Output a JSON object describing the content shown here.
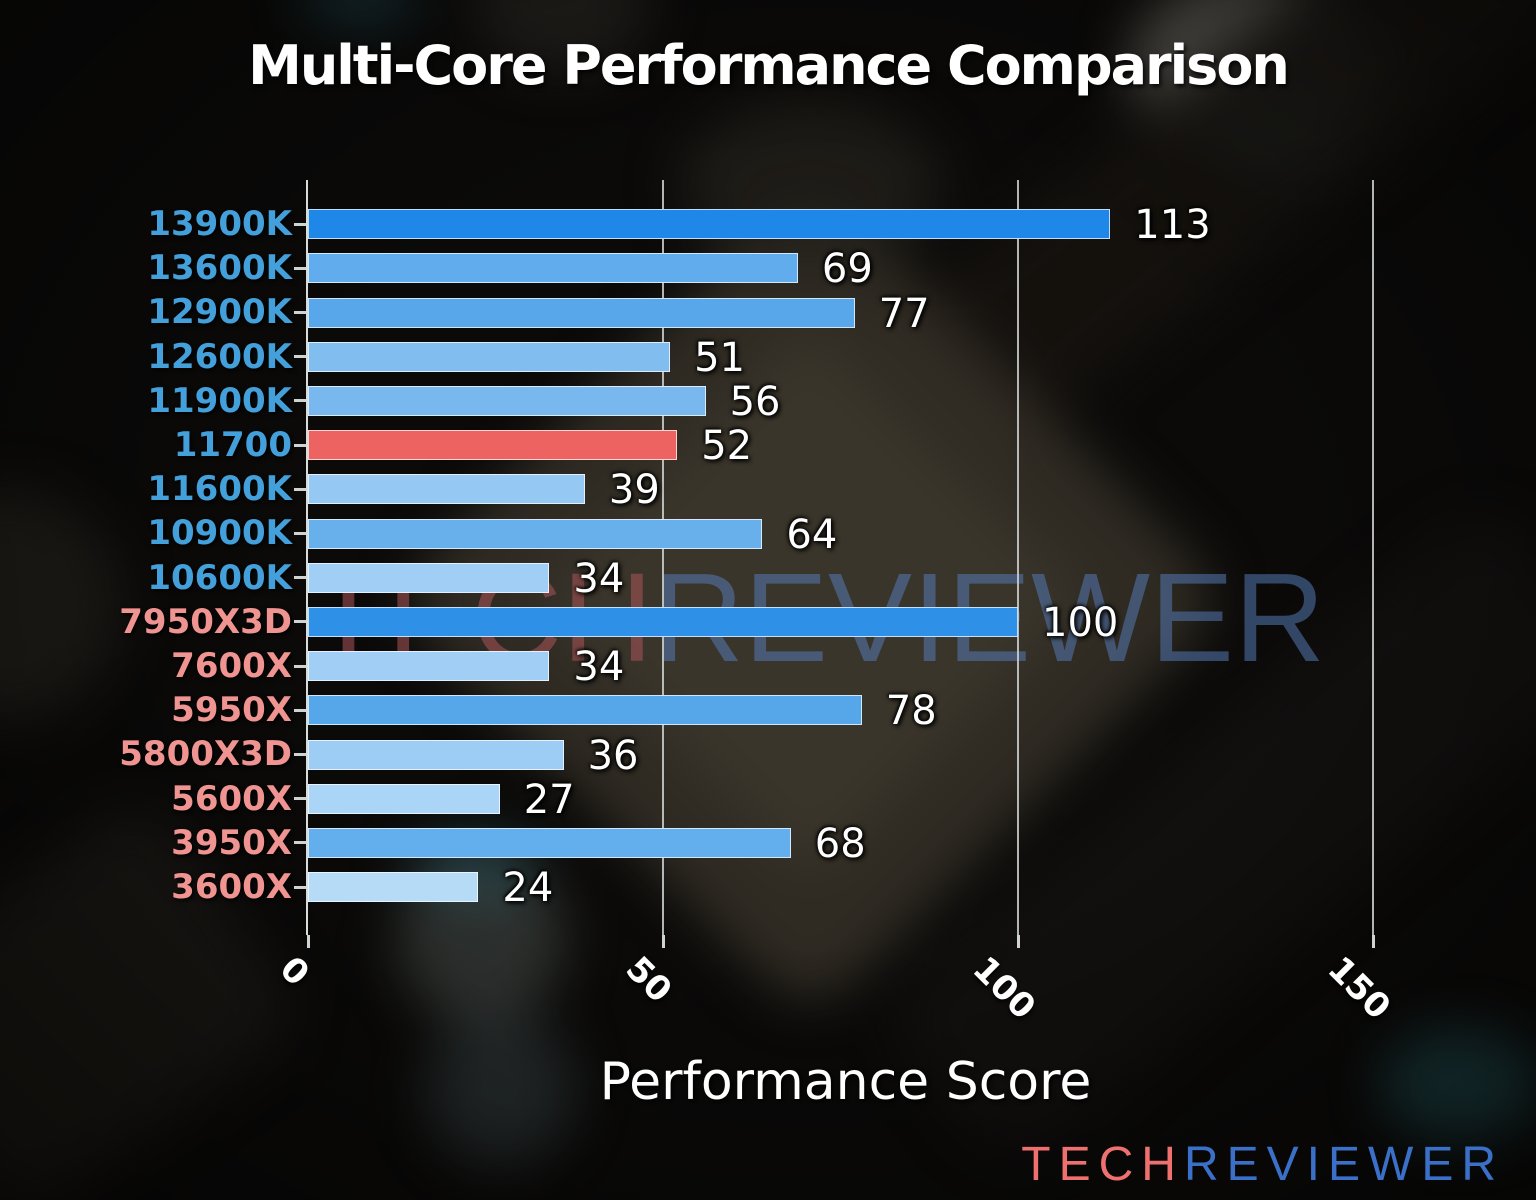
{
  "title": "Multi-Core Performance Comparison",
  "watermark": {
    "red": "TECH",
    "blue": "REVIEWER"
  },
  "logo": {
    "red": "TECH",
    "blue": "REVIEWER"
  },
  "chart_data": {
    "type": "bar",
    "orientation": "horizontal",
    "title": "Multi-Core Performance Comparison",
    "xlabel": "Performance Score",
    "xlim": [
      0,
      151
    ],
    "xticks": [
      0,
      50,
      100,
      150
    ],
    "grid": true,
    "legend": false,
    "categories": [
      "13900K",
      "13600K",
      "12900K",
      "12600K",
      "11900K",
      "11700",
      "11600K",
      "10900K",
      "10600K",
      "7950X3D",
      "7600X",
      "5950X",
      "5800X3D",
      "5600X",
      "3950X",
      "3600X"
    ],
    "values": [
      113,
      69,
      77,
      51,
      56,
      52,
      39,
      64,
      34,
      100,
      34,
      78,
      36,
      27,
      68,
      24
    ],
    "bar_colors": [
      "#1e87e7",
      "#61acec",
      "#57a7ea",
      "#82bdf0",
      "#79b8ee",
      "#ed6361",
      "#95c8f2",
      "#68b0ec",
      "#a0cef4",
      "#2f90e8",
      "#a0cef4",
      "#56a6ea",
      "#9dccf4",
      "#abd5f6",
      "#63aeec",
      "#b6dbf7"
    ],
    "category_label_colors": [
      "#44a0db",
      "#44a0db",
      "#44a0db",
      "#44a0db",
      "#44a0db",
      "#44a0db",
      "#44a0db",
      "#44a0db",
      "#44a0db",
      "#f09492",
      "#f09492",
      "#f09492",
      "#f09492",
      "#f09492",
      "#f09492",
      "#f09492"
    ],
    "highlighted_category": "11700",
    "highlight_color": "#ed6361"
  },
  "colors": {
    "title": "#ffffff",
    "value_label": "#ffffff",
    "tick_label": "#ffffff",
    "grid": "#cfd4d2",
    "axis": "#d8dcda",
    "intel_label": "#44a0db",
    "amd_label": "#f09492",
    "watermark_red": "#ac5458",
    "watermark_blue": "#5478b2",
    "logo_red": "#ee7170",
    "logo_blue": "#3a70c8"
  }
}
